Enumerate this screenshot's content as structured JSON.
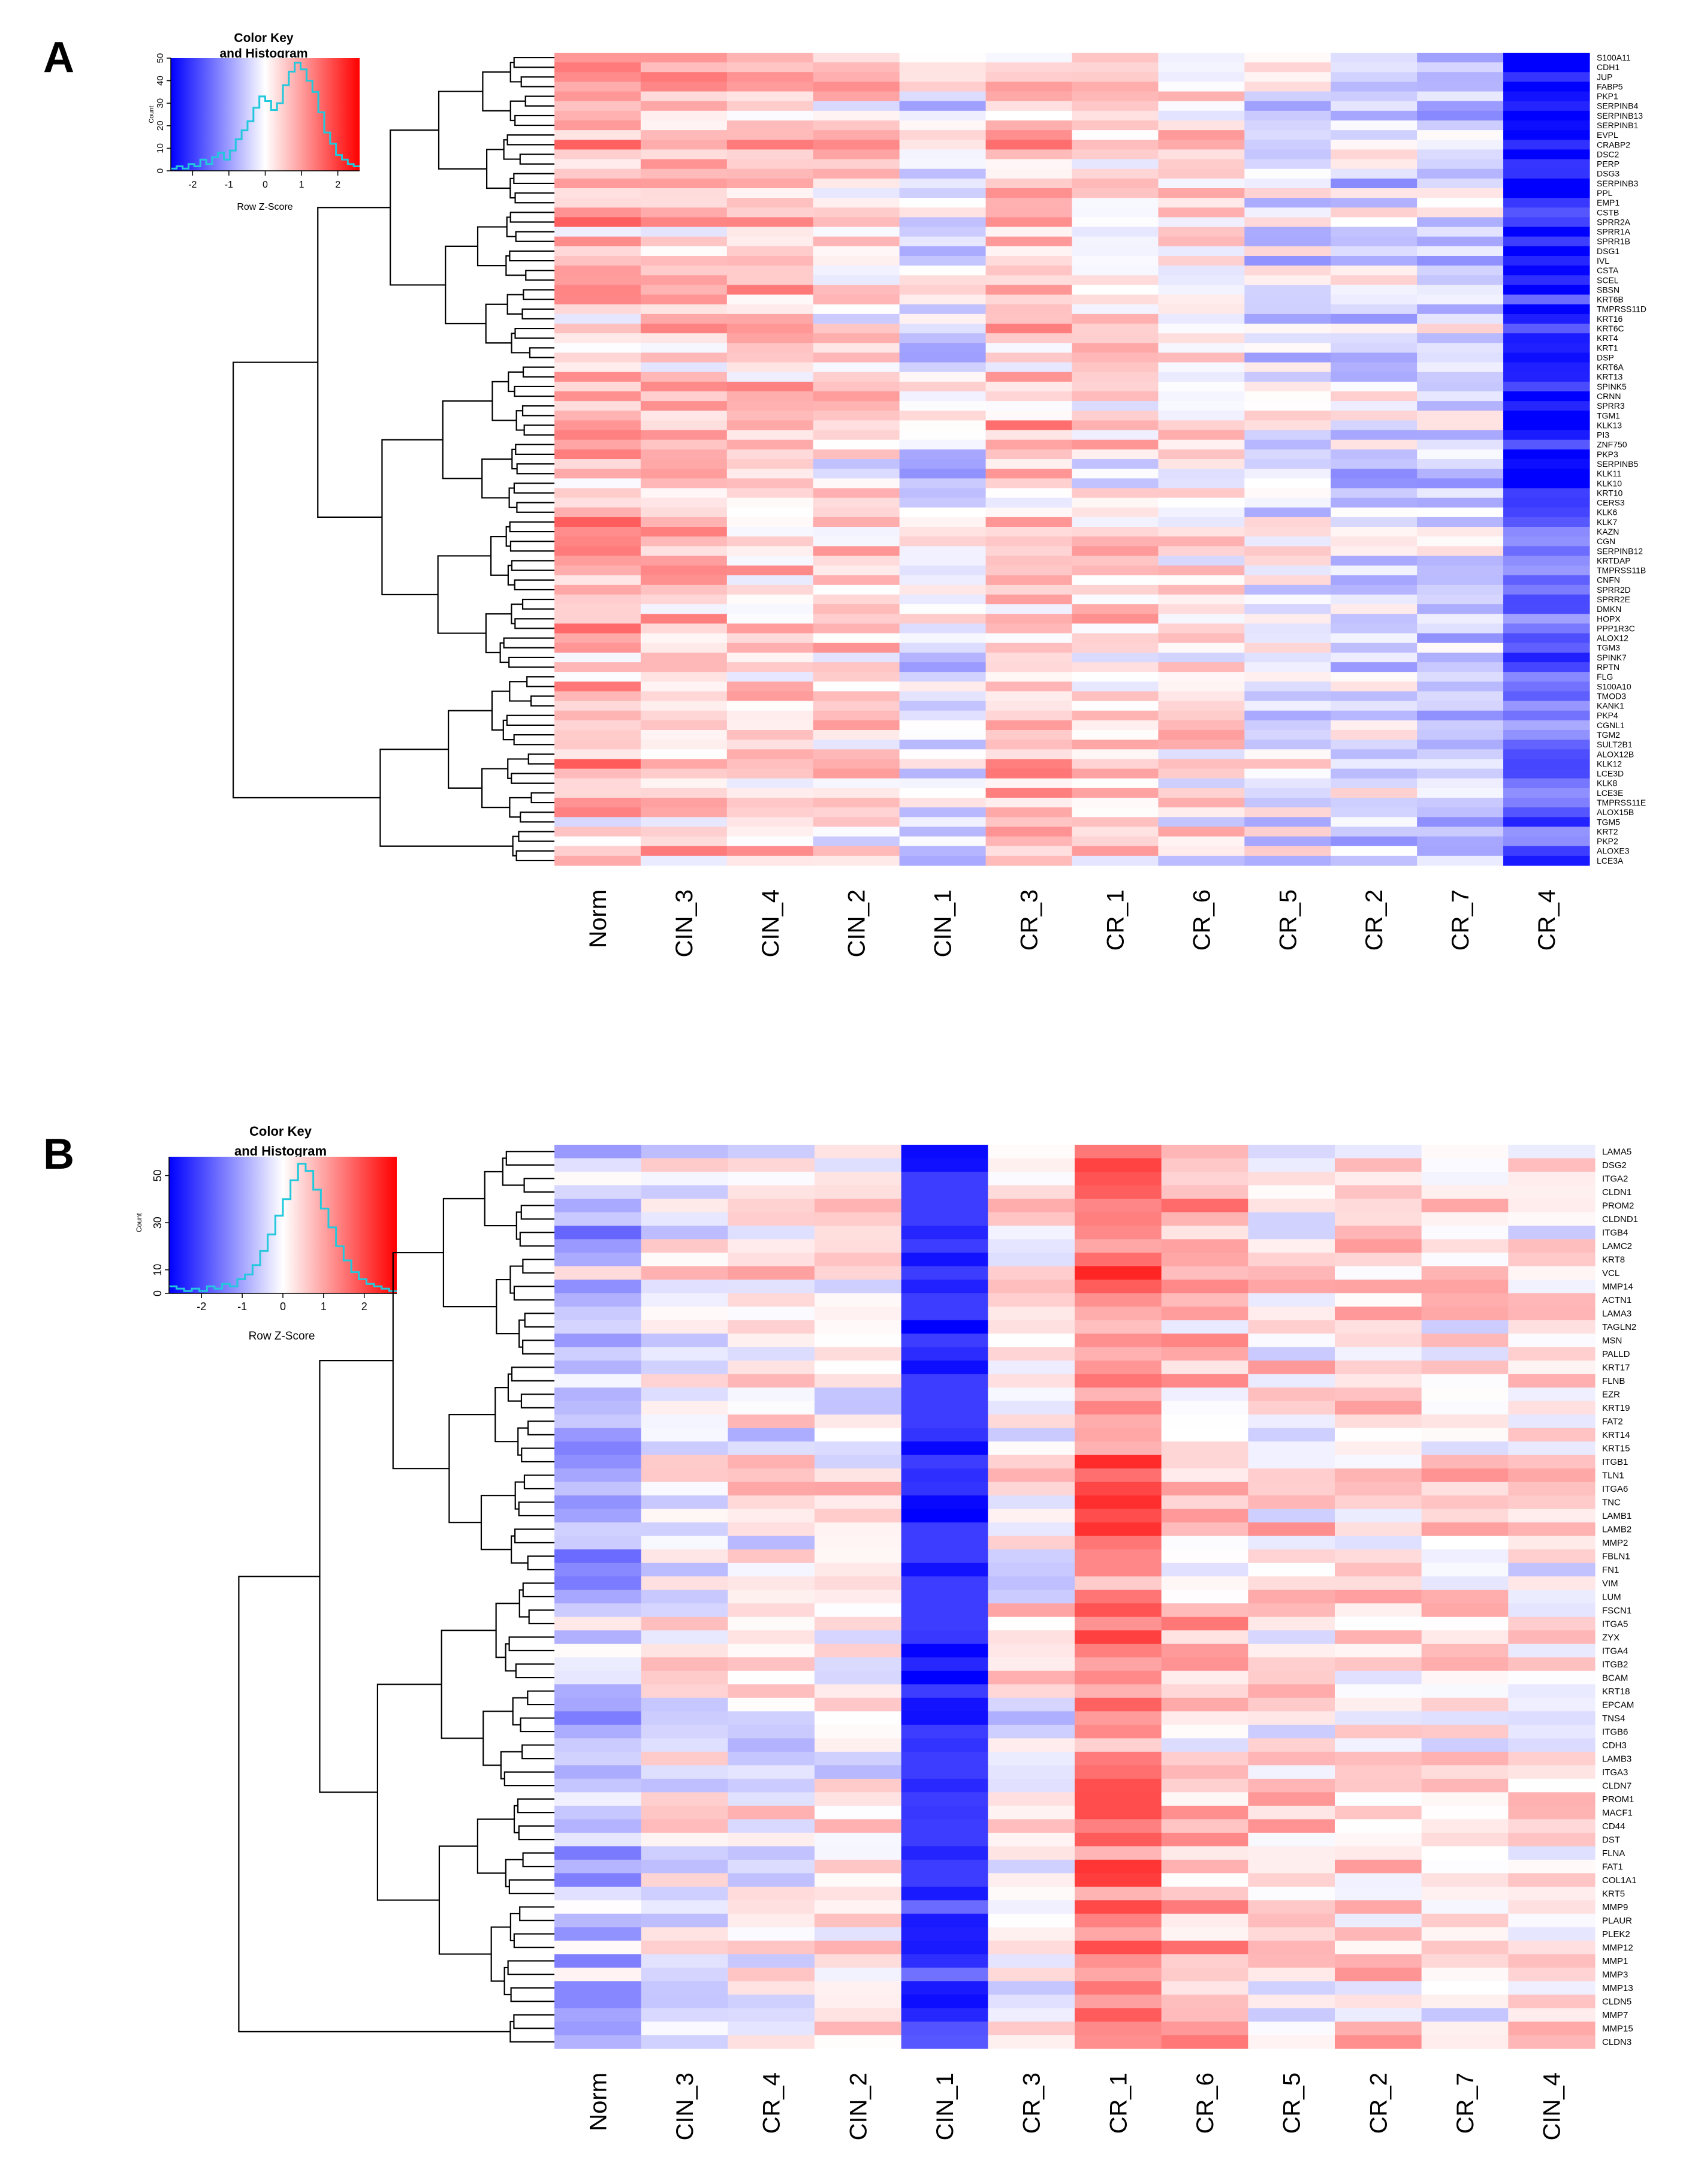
{
  "figure": {
    "panel_a_label": "A",
    "panel_b_label": "B"
  },
  "colors": {
    "low": "#0000ff",
    "mid": "#ffffff",
    "high": "#ff0000",
    "histogram_line": "#22c8dc",
    "dendrogram": "#000000"
  },
  "chart_data": [
    {
      "type": "heatmap",
      "panel": "A",
      "color_key": {
        "title_line1": "Color Key",
        "title_line2": "and Histogram",
        "xlabel": "Row Z-Score",
        "ylabel": "Count",
        "x_ticks": [
          "-2",
          "-1",
          "0",
          "1",
          "2"
        ],
        "y_ticks": [
          "0",
          "10",
          "20",
          "30",
          "40",
          "50"
        ],
        "x_range": [
          -2.6,
          2.6
        ],
        "y_range": [
          0,
          50
        ],
        "histogram_counts": [
          1,
          2,
          1,
          3,
          2,
          5,
          3,
          6,
          8,
          5,
          9,
          14,
          18,
          22,
          28,
          33,
          31,
          27,
          30,
          38,
          44,
          48,
          45,
          40,
          35,
          26,
          17,
          12,
          7,
          5,
          3,
          2
        ]
      },
      "columns": [
        "Norm",
        "CIN_3",
        "CIN_4",
        "CIN_2",
        "CIN_1",
        "CR_3",
        "CR_1",
        "CR_6",
        "CR_5",
        "CR_2",
        "CR_7",
        "CR_4"
      ],
      "column_profiles": [
        0.7,
        0.5,
        0.45,
        0.3,
        -0.3,
        0.55,
        0.3,
        0.25,
        -0.2,
        -0.35,
        -0.45,
        -1.5
      ],
      "rows": [
        "S100A11",
        "CDH1",
        "JUP",
        "FABP5",
        "PKP1",
        "SERPINB4",
        "SERPINB13",
        "SERPINB1",
        "EVPL",
        "CRABP2",
        "DSC2",
        "PERP",
        "DSG3",
        "SERPINB3",
        "PPL",
        "EMP1",
        "CSTB",
        "SPRR2A",
        "SPRR1A",
        "SPRR1B",
        "DSG1",
        "IVL",
        "CSTA",
        "SCEL",
        "SBSN",
        "KRT6B",
        "TMPRSS11D",
        "KRT16",
        "KRT6C",
        "KRT4",
        "KRT1",
        "DSP",
        "KRT6A",
        "KRT13",
        "SPINK5",
        "CRNN",
        "SPRR3",
        "TGM1",
        "KLK13",
        "PI3",
        "ZNF750",
        "PKP3",
        "SERPINB5",
        "KLK11",
        "KLK10",
        "KRT10",
        "CERS3",
        "KLK6",
        "KLK7",
        "KAZN",
        "CGN",
        "SERPINB12",
        "KRTDAP",
        "TMPRSS11B",
        "CNFN",
        "SPRR2D",
        "SPRR2E",
        "DMKN",
        "HOPX",
        "PPP1R3C",
        "ALOX12",
        "TGM3",
        "SPINK7",
        "RPTN",
        "FLG",
        "S100A10",
        "TMOD3",
        "KANK1",
        "PKP4",
        "CGNL1",
        "TGM2",
        "SULT2B1",
        "ALOX12B",
        "KLK12",
        "LCE3D",
        "KLK8",
        "LCE3E",
        "TMPRSS11E",
        "ALOX15B",
        "TGM5",
        "KRT2",
        "PKP2",
        "ALOXE3",
        "LCE3A"
      ]
    },
    {
      "type": "heatmap",
      "panel": "B",
      "color_key": {
        "title_line1": "Color Key",
        "title_line2": "and Histogram",
        "xlabel": "Row Z-Score",
        "ylabel": "Count",
        "x_ticks": [
          "-2",
          "-1",
          "0",
          "1",
          "2"
        ],
        "y_ticks": [
          "0",
          "10",
          "30",
          "50"
        ],
        "x_range": [
          -2.8,
          2.8
        ],
        "y_range": [
          0,
          58
        ],
        "histogram_counts": [
          3,
          2,
          1,
          2,
          1,
          3,
          2,
          4,
          3,
          6,
          8,
          12,
          18,
          25,
          33,
          40,
          48,
          55,
          52,
          44,
          36,
          28,
          20,
          14,
          9,
          6,
          4,
          3,
          2,
          1
        ]
      },
      "columns": [
        "Norm",
        "CIN_3",
        "CR_4",
        "CIN_2",
        "CIN_1",
        "CR_3",
        "CR_1",
        "CR_6",
        "CR_5",
        "CR_2",
        "CR_7",
        "CIN_4"
      ],
      "column_profiles": [
        -0.7,
        -0.15,
        0.05,
        0.05,
        -2.0,
        0.1,
        1.3,
        0.55,
        0.25,
        0.3,
        0.2,
        0.2
      ],
      "rows": [
        "LAMA5",
        "DSG2",
        "ITGA2",
        "CLDN1",
        "PROM2",
        "CLDND1",
        "ITGB4",
        "LAMC2",
        "KRT8",
        "VCL",
        "MMP14",
        "ACTN1",
        "LAMA3",
        "TAGLN2",
        "MSN",
        "PALLD",
        "KRT17",
        "FLNB",
        "EZR",
        "KRT19",
        "FAT2",
        "KRT14",
        "KRT15",
        "ITGB1",
        "TLN1",
        "ITGA6",
        "TNC",
        "LAMB1",
        "LAMB2",
        "MMP2",
        "FBLN1",
        "FN1",
        "VIM",
        "LUM",
        "FSCN1",
        "ITGA5",
        "ZYX",
        "ITGA4",
        "ITGB2",
        "BCAM",
        "KRT18",
        "EPCAM",
        "TNS4",
        "ITGB6",
        "CDH3",
        "LAMB3",
        "ITGA3",
        "CLDN7",
        "PROM1",
        "MACF1",
        "CD44",
        "DST",
        "FLNA",
        "FAT1",
        "COL1A1",
        "KRT5",
        "MMP9",
        "PLAUR",
        "PLEK2",
        "MMP12",
        "MMP1",
        "MMP3",
        "MMP13",
        "CLDN5",
        "MMP7",
        "MMP15",
        "CLDN3"
      ]
    }
  ]
}
